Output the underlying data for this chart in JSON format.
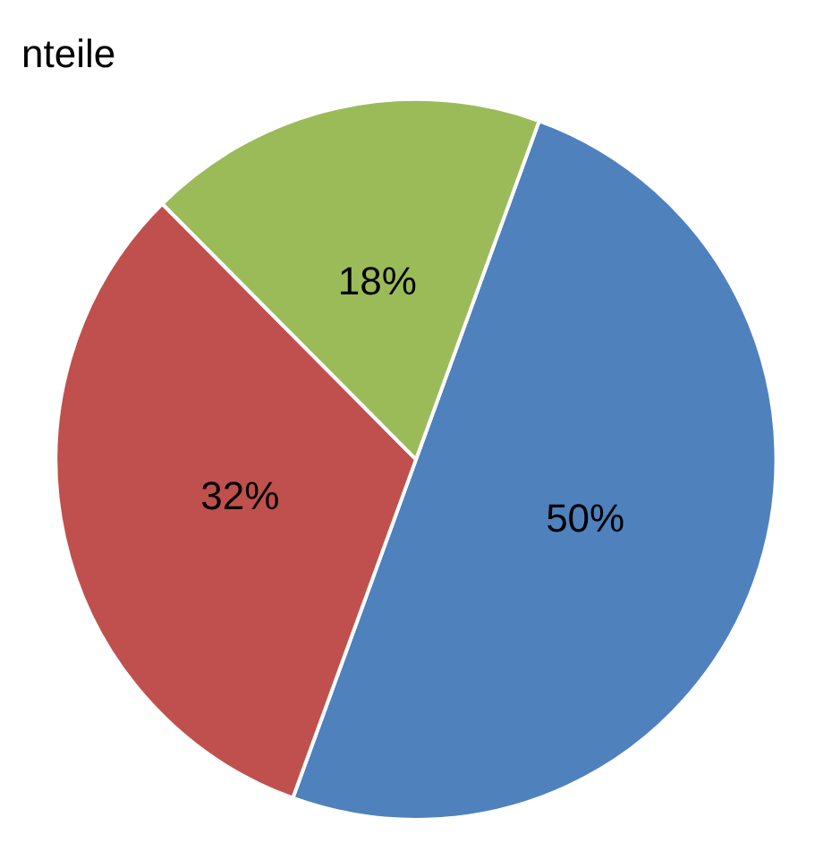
{
  "chart_data": {
    "type": "pie",
    "title": "nteile",
    "categories": [
      null,
      null,
      null
    ],
    "values": [
      50,
      32,
      18
    ],
    "value_labels": [
      "50%",
      "32%",
      "18%"
    ],
    "colors": [
      "#4f81bd",
      "#c0504d",
      "#9bbb59"
    ],
    "legend": false
  }
}
